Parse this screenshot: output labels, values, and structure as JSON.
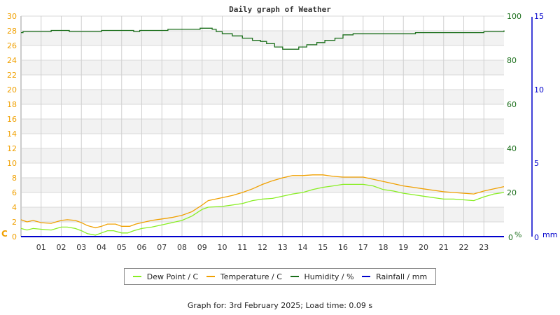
{
  "chart_data": {
    "type": "line",
    "title": "Daily graph of Weather",
    "xlabel": "",
    "x_ticks": [
      "01",
      "02",
      "03",
      "04",
      "05",
      "06",
      "07",
      "08",
      "09",
      "10",
      "11",
      "12",
      "13",
      "14",
      "15",
      "16",
      "17",
      "18",
      "19",
      "20",
      "21",
      "22",
      "23"
    ],
    "x_range_hours": [
      0,
      24
    ],
    "axes": {
      "left": {
        "label": "C",
        "range": [
          0,
          30
        ],
        "ticks": [
          0,
          2,
          4,
          6,
          8,
          10,
          12,
          14,
          16,
          18,
          20,
          22,
          24,
          26,
          28,
          30
        ],
        "color": "#f0a000"
      },
      "right": {
        "label": "%",
        "range": [
          0,
          100
        ],
        "ticks": [
          0,
          20,
          40,
          60,
          80,
          100
        ],
        "color": "#1a6e1a"
      },
      "right2": {
        "label": "mm",
        "range": [
          0,
          15
        ],
        "ticks": [
          0,
          5,
          10,
          15
        ],
        "color": "#0000cc"
      }
    },
    "grid": true,
    "legend_position": "bottom",
    "series": [
      {
        "name": "Dew Point / C",
        "color": "#88ee22",
        "axis": "left",
        "points": [
          [
            0,
            1.1
          ],
          [
            0.3,
            0.9
          ],
          [
            0.6,
            1.1
          ],
          [
            1,
            1.0
          ],
          [
            1.5,
            0.9
          ],
          [
            2,
            1.3
          ],
          [
            2.3,
            1.3
          ],
          [
            2.7,
            1.1
          ],
          [
            3,
            0.8
          ],
          [
            3.3,
            0.4
          ],
          [
            3.7,
            0.2
          ],
          [
            4,
            0.5
          ],
          [
            4.3,
            0.8
          ],
          [
            4.6,
            0.8
          ],
          [
            5,
            0.5
          ],
          [
            5.3,
            0.5
          ],
          [
            5.6,
            0.8
          ],
          [
            6,
            1.1
          ],
          [
            6.5,
            1.3
          ],
          [
            7,
            1.6
          ],
          [
            7.5,
            1.9
          ],
          [
            8,
            2.2
          ],
          [
            8.5,
            2.8
          ],
          [
            9,
            3.7
          ],
          [
            9.3,
            4.0
          ],
          [
            10,
            4.1
          ],
          [
            10.5,
            4.3
          ],
          [
            11,
            4.5
          ],
          [
            11.5,
            4.9
          ],
          [
            12,
            5.1
          ],
          [
            12.5,
            5.2
          ],
          [
            13,
            5.5
          ],
          [
            13.5,
            5.8
          ],
          [
            14,
            6.0
          ],
          [
            14.5,
            6.4
          ],
          [
            15,
            6.7
          ],
          [
            15.5,
            6.9
          ],
          [
            16,
            7.1
          ],
          [
            16.5,
            7.1
          ],
          [
            17,
            7.1
          ],
          [
            17.5,
            6.9
          ],
          [
            18,
            6.4
          ],
          [
            18.5,
            6.2
          ],
          [
            19,
            5.9
          ],
          [
            19.5,
            5.7
          ],
          [
            20,
            5.5
          ],
          [
            20.5,
            5.3
          ],
          [
            21,
            5.1
          ],
          [
            21.5,
            5.1
          ],
          [
            22,
            5.0
          ],
          [
            22.5,
            4.9
          ],
          [
            23,
            5.4
          ],
          [
            23.5,
            5.8
          ],
          [
            24,
            6.0
          ]
        ]
      },
      {
        "name": "Temperature / C",
        "color": "#f0a000",
        "axis": "left",
        "points": [
          [
            0,
            2.3
          ],
          [
            0.3,
            2.0
          ],
          [
            0.6,
            2.2
          ],
          [
            1,
            1.9
          ],
          [
            1.5,
            1.8
          ],
          [
            2,
            2.2
          ],
          [
            2.3,
            2.3
          ],
          [
            2.7,
            2.2
          ],
          [
            3,
            1.9
          ],
          [
            3.3,
            1.5
          ],
          [
            3.7,
            1.2
          ],
          [
            4,
            1.4
          ],
          [
            4.3,
            1.7
          ],
          [
            4.7,
            1.7
          ],
          [
            5,
            1.4
          ],
          [
            5.4,
            1.4
          ],
          [
            5.7,
            1.7
          ],
          [
            6,
            1.9
          ],
          [
            6.5,
            2.2
          ],
          [
            7,
            2.4
          ],
          [
            7.5,
            2.6
          ],
          [
            8,
            2.9
          ],
          [
            8.5,
            3.4
          ],
          [
            9,
            4.3
          ],
          [
            9.3,
            4.9
          ],
          [
            10,
            5.3
          ],
          [
            10.5,
            5.6
          ],
          [
            11,
            6.0
          ],
          [
            11.5,
            6.5
          ],
          [
            12,
            7.1
          ],
          [
            12.5,
            7.6
          ],
          [
            13,
            8.0
          ],
          [
            13.5,
            8.3
          ],
          [
            14,
            8.3
          ],
          [
            14.5,
            8.4
          ],
          [
            15,
            8.4
          ],
          [
            15.5,
            8.2
          ],
          [
            16,
            8.1
          ],
          [
            16.5,
            8.1
          ],
          [
            17,
            8.1
          ],
          [
            17.5,
            7.8
          ],
          [
            18,
            7.5
          ],
          [
            18.5,
            7.2
          ],
          [
            19,
            6.9
          ],
          [
            19.5,
            6.7
          ],
          [
            20,
            6.5
          ],
          [
            20.5,
            6.3
          ],
          [
            21,
            6.1
          ],
          [
            21.5,
            6.0
          ],
          [
            22,
            5.9
          ],
          [
            22.5,
            5.8
          ],
          [
            23,
            6.2
          ],
          [
            23.5,
            6.5
          ],
          [
            24,
            6.8
          ]
        ]
      },
      {
        "name": "Humidity / %",
        "color": "#1a6e1a",
        "axis": "right",
        "points": [
          [
            0,
            92.5
          ],
          [
            0.1,
            93
          ],
          [
            0.35,
            93
          ],
          [
            1.5,
            93
          ],
          [
            1.5,
            93.5
          ],
          [
            2.3,
            93.5
          ],
          [
            2.4,
            93
          ],
          [
            4,
            93
          ],
          [
            4,
            93.5
          ],
          [
            5.5,
            93.5
          ],
          [
            5.6,
            93
          ],
          [
            5.9,
            93.5
          ],
          [
            7,
            93.5
          ],
          [
            7.3,
            94
          ],
          [
            8.2,
            94
          ],
          [
            8.8,
            94
          ],
          [
            8.9,
            94.5
          ],
          [
            9.5,
            94
          ],
          [
            9.7,
            93
          ],
          [
            10,
            92
          ],
          [
            10.5,
            91
          ],
          [
            11,
            90
          ],
          [
            11.5,
            89
          ],
          [
            11.9,
            88.5
          ],
          [
            12.2,
            87.5
          ],
          [
            12.6,
            86
          ],
          [
            13,
            85
          ],
          [
            13.5,
            85
          ],
          [
            13.8,
            86
          ],
          [
            14.2,
            87
          ],
          [
            14.7,
            88
          ],
          [
            15.1,
            89
          ],
          [
            15.6,
            90
          ],
          [
            16,
            91.5
          ],
          [
            16.5,
            92
          ],
          [
            17,
            92
          ],
          [
            18,
            92
          ],
          [
            19,
            92
          ],
          [
            19.6,
            92.5
          ],
          [
            21,
            92.5
          ],
          [
            22,
            92.5
          ],
          [
            22.8,
            92.5
          ],
          [
            23,
            93
          ],
          [
            23.5,
            93
          ],
          [
            24,
            93.5
          ]
        ]
      },
      {
        "name": "Rainfall / mm",
        "color": "#0000cc",
        "axis": "right2",
        "points": [
          [
            0,
            0
          ],
          [
            24,
            0
          ]
        ]
      }
    ]
  },
  "legend": [
    {
      "label": "Dew Point / C",
      "color": "#88ee22"
    },
    {
      "label": "Temperature / C",
      "color": "#f0a000"
    },
    {
      "label": "Humidity / %",
      "color": "#1a6e1a"
    },
    {
      "label": "Rainfall / mm",
      "color": "#0000cc"
    }
  ],
  "footer": "Graph for: 3rd February 2025; Load time: 0.09 s"
}
